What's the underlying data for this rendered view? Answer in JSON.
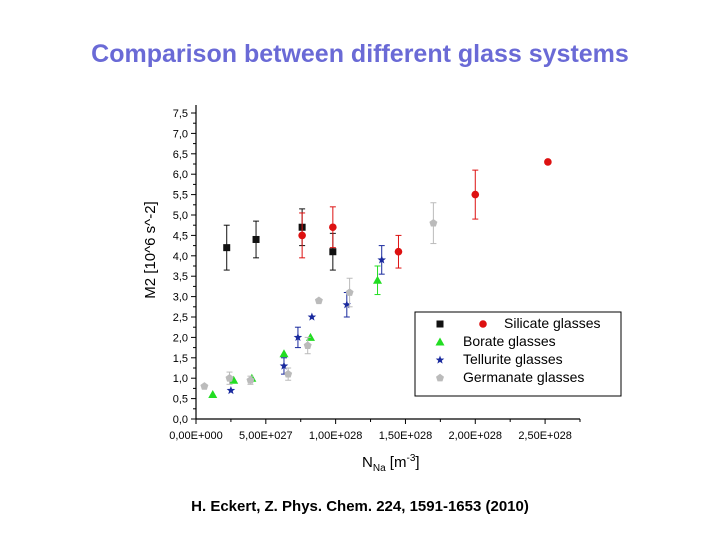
{
  "slide": {
    "title": "Comparison between different glass systems",
    "citation": "H. Eckert, Z. Phys. Chem. 224, 1591-1653 (2010)"
  },
  "chart_data": {
    "type": "scatter",
    "title": "",
    "xlabel": "N_Na [m^-3]",
    "xlabel_main": "N",
    "xlabel_sub": "Na",
    "xlabel_unit": " [m",
    "xlabel_sup": "-3",
    "xlabel_close": "]",
    "ylabel": "M2 [10^6 s^-2]",
    "xlim": [
      0,
      2.75e+28
    ],
    "ylim": [
      0,
      7.5
    ],
    "x_ticks": [
      0,
      5e+27,
      1e+28,
      1.5e+28,
      2e+28,
      2.5e+28
    ],
    "x_tick_labels": [
      "0,00E+000",
      "5,00E+027",
      "1,00E+028",
      "1,50E+028",
      "2,00E+028",
      "2,50E+028"
    ],
    "y_ticks": [
      0,
      0.5,
      1,
      1.5,
      2,
      2.5,
      3,
      3.5,
      4,
      4.5,
      5,
      5.5,
      6,
      6.5,
      7,
      7.5
    ],
    "y_tick_labels": [
      "0,0",
      "0,5",
      "1,0",
      "1,5",
      "2,0",
      "2,5",
      "3,0",
      "3,5",
      "4,0",
      "4,5",
      "5,0",
      "5,5",
      "6,0",
      "6,5",
      "7,0",
      "7,5"
    ],
    "grid": false,
    "legend_position": "bottom-right",
    "series": [
      {
        "name": "Silicate glasses",
        "marker": "square-circle",
        "colors": [
          "#111111",
          "#dd1111"
        ],
        "points": [
          {
            "x": 2.2e+27,
            "y": 4.2,
            "err": 0.55,
            "c": 0
          },
          {
            "x": 4.3e+27,
            "y": 4.4,
            "err": 0.45,
            "c": 0
          },
          {
            "x": 7.6e+27,
            "y": 4.7,
            "err": 0.45,
            "c": 0
          },
          {
            "x": 9.8e+27,
            "y": 4.1,
            "err": 0.45,
            "c": 0
          },
          {
            "x": 7.6e+27,
            "y": 4.5,
            "err": 0.55,
            "c": 1
          },
          {
            "x": 9.8e+27,
            "y": 4.7,
            "err": 0.5,
            "c": 1
          },
          {
            "x": 1.45e+28,
            "y": 4.1,
            "err": 0.4,
            "c": 1
          },
          {
            "x": 2e+28,
            "y": 5.5,
            "err": 0.6,
            "c": 1
          },
          {
            "x": 2.52e+28,
            "y": 6.3,
            "err": 0,
            "c": 1
          }
        ]
      },
      {
        "name": "Borate glasses",
        "marker": "triangle",
        "colors": [
          "#22dd22"
        ],
        "points": [
          {
            "x": 1.2e+27,
            "y": 0.6,
            "err": 0,
            "c": 0
          },
          {
            "x": 2.7e+27,
            "y": 0.95,
            "err": 0,
            "c": 0
          },
          {
            "x": 4e+27,
            "y": 1.0,
            "err": 0,
            "c": 0
          },
          {
            "x": 6.3e+27,
            "y": 1.6,
            "err": 0,
            "c": 0
          },
          {
            "x": 8.2e+27,
            "y": 2.0,
            "err": 0,
            "c": 0
          },
          {
            "x": 1.3e+28,
            "y": 3.4,
            "err": 0.35,
            "c": 0
          }
        ]
      },
      {
        "name": "Tellurite glasses",
        "marker": "star",
        "colors": [
          "#1a2a9e"
        ],
        "points": [
          {
            "x": 2.5e+27,
            "y": 0.7,
            "err": 0,
            "c": 0
          },
          {
            "x": 6.3e+27,
            "y": 1.3,
            "err": 0.2,
            "c": 0
          },
          {
            "x": 7.3e+27,
            "y": 2.0,
            "err": 0.25,
            "c": 0
          },
          {
            "x": 8.3e+27,
            "y": 2.5,
            "err": 0,
            "c": 0
          },
          {
            "x": 1.08e+28,
            "y": 2.8,
            "err": 0.3,
            "c": 0
          },
          {
            "x": 1.33e+28,
            "y": 3.9,
            "err": 0.35,
            "c": 0
          }
        ]
      },
      {
        "name": "Germanate glasses",
        "marker": "pentagon",
        "colors": [
          "#bbbbbb"
        ],
        "points": [
          {
            "x": 6e+26,
            "y": 0.8,
            "err": 0,
            "c": 0
          },
          {
            "x": 2.4e+27,
            "y": 1.0,
            "err": 0.15,
            "c": 0
          },
          {
            "x": 3.9e+27,
            "y": 0.95,
            "err": 0.1,
            "c": 0
          },
          {
            "x": 6.6e+27,
            "y": 1.1,
            "err": 0.15,
            "c": 0
          },
          {
            "x": 8e+27,
            "y": 1.8,
            "err": 0.2,
            "c": 0
          },
          {
            "x": 8.8e+27,
            "y": 2.9,
            "err": 0,
            "c": 0
          },
          {
            "x": 1.1e+28,
            "y": 3.1,
            "err": 0.35,
            "c": 0
          },
          {
            "x": 1.7e+28,
            "y": 4.8,
            "err": 0.5,
            "c": 0
          }
        ]
      }
    ]
  }
}
